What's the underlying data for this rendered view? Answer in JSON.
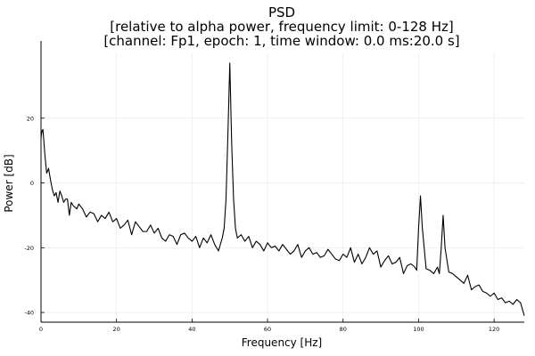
{
  "chart_data": {
    "type": "line",
    "title_lines": [
      "PSD",
      "[relative to alpha power, frequency limit: 0-128 Hz]",
      "[channel: Fp1, epoch: 1, time window: 0.0 ms:20.0 s]"
    ],
    "xlabel": "Frequency [Hz]",
    "ylabel": "Power [dB]",
    "xlim": [
      0,
      128
    ],
    "ylim": [
      -43,
      40
    ],
    "xticks": [
      0,
      20,
      40,
      60,
      80,
      100,
      120
    ],
    "yticks": [
      -40,
      -20,
      0,
      20
    ],
    "grid": true,
    "legend": "none",
    "line_color": "#000000",
    "series": [
      {
        "x": [
          0,
          0.25,
          0.5,
          0.75,
          1,
          1.5,
          2,
          2.5,
          3,
          3.5,
          4,
          4.5,
          5,
          5.5,
          6,
          6.5,
          7,
          7.5,
          8,
          8.5,
          9,
          9.5,
          10,
          11,
          12,
          13,
          14,
          15,
          16,
          17,
          18,
          19,
          20,
          21,
          22,
          23,
          24,
          25,
          26,
          27,
          28,
          29,
          30,
          31,
          32,
          33,
          34,
          35,
          36,
          37,
          38,
          39,
          40,
          41,
          42,
          43,
          44,
          45,
          46,
          47,
          48,
          48.5,
          49,
          49.5,
          50,
          50.5,
          51,
          51.5,
          52,
          53,
          54,
          55,
          56,
          57,
          58,
          59,
          60,
          61,
          62,
          63,
          64,
          65,
          66,
          67,
          68,
          69,
          70,
          71,
          72,
          73,
          74,
          75,
          76,
          77,
          78,
          79,
          80,
          81,
          82,
          83,
          84,
          85,
          86,
          87,
          88,
          89,
          90,
          91,
          92,
          93,
          94,
          95,
          96,
          97,
          98,
          99,
          99.5,
          100,
          100.5,
          101,
          102,
          103,
          104,
          105,
          105.5,
          106,
          106.5,
          107,
          108,
          109,
          110,
          111,
          112,
          113,
          114,
          115,
          116,
          117,
          118,
          119,
          120,
          121,
          122,
          123,
          124,
          125,
          126,
          127,
          128
        ],
        "values": [
          14,
          16,
          16.5,
          13,
          9,
          3,
          4.5,
          1,
          -2,
          -4,
          -3,
          -6,
          -2.5,
          -4,
          -6,
          -5,
          -5,
          -10,
          -6,
          -7,
          -7.5,
          -8,
          -6.5,
          -8,
          -10.5,
          -9,
          -9.5,
          -12,
          -10,
          -11,
          -9,
          -12,
          -11,
          -14,
          -13,
          -11.5,
          -16,
          -12,
          -13.5,
          -15,
          -15,
          -13,
          -15.5,
          -14,
          -17,
          -18,
          -16,
          -16.5,
          -19,
          -16,
          -15.5,
          -17,
          -18,
          -16.5,
          -20,
          -17,
          -18.5,
          -16,
          -19,
          -21,
          -17,
          -14,
          -5,
          15,
          37,
          12,
          -5,
          -14,
          -17,
          -16,
          -18,
          -16.5,
          -20,
          -18,
          -19,
          -21,
          -18.5,
          -20,
          -19.5,
          -21,
          -19,
          -20.5,
          -22,
          -21,
          -19,
          -23,
          -21,
          -20,
          -22,
          -21.5,
          -23,
          -22.5,
          -20.5,
          -22,
          -23.5,
          -24,
          -22,
          -23,
          -20,
          -24.5,
          -22,
          -25,
          -23,
          -20,
          -22,
          -21,
          -26,
          -24,
          -22.5,
          -25,
          -24.5,
          -23,
          -28,
          -25.5,
          -25,
          -26,
          -27,
          -14,
          -4,
          -14,
          -26.5,
          -27,
          -28,
          -26,
          -28,
          -20,
          -10,
          -20,
          -27.5,
          -28,
          -29,
          -30,
          -31,
          -28.5,
          -33,
          -32,
          -31.5,
          -33.5,
          -34,
          -35,
          -34,
          -36,
          -35.5,
          -37,
          -36.5,
          -37.5,
          -36,
          -37,
          -41
        ]
      }
    ]
  }
}
